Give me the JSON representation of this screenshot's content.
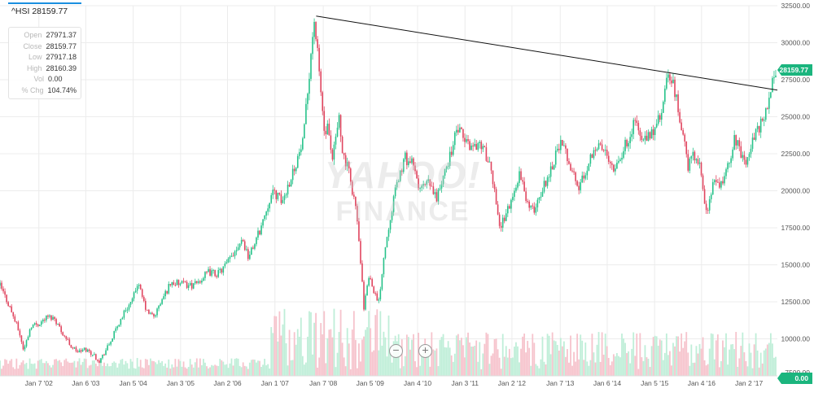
{
  "header": {
    "symbol_title": "^HSI 28159.77"
  },
  "info_panel": {
    "rows": [
      {
        "label": "Open",
        "value": "27971.37"
      },
      {
        "label": "Close",
        "value": "28159.77"
      },
      {
        "label": "Low",
        "value": "27917.18"
      },
      {
        "label": "High",
        "value": "28160.39"
      },
      {
        "label": "Vol",
        "value": "0.00"
      },
      {
        "label": "% Chg",
        "value": "104.74%"
      }
    ]
  },
  "watermark": {
    "line1": "YAHOO!",
    "line2": "FINANCE"
  },
  "controls": {
    "zoom_out_label": "−",
    "zoom_in_label": "+"
  },
  "colors": {
    "up": "#27c28a",
    "down": "#e0455f",
    "volume_up": "#bfeed8",
    "volume_down": "#f6c3cc",
    "price_badge": "#1bb57e",
    "trendline": "#111111",
    "accent": "#1a8fe0"
  },
  "chart_data": {
    "type": "candlestick",
    "symbol": "^HSI",
    "x_tick_labels": [
      "Jan 7 '02",
      "Jan 6 '03",
      "Jan 5 '04",
      "Jan 3 '05",
      "Jan 2 '06",
      "Jan 1 '07",
      "Jan 7 '08",
      "Jan 5 '09",
      "Jan 4 '10",
      "Jan 3 '11",
      "Jan 2 '12",
      "Jan 7 '13",
      "Jan 6 '14",
      "Jan 5 '15",
      "Jan 4 '16",
      "Jan 2 '17"
    ],
    "x_tick_years": [
      2002.02,
      2003.01,
      2004.01,
      2005.01,
      2006.0,
      2007.0,
      2008.02,
      2009.01,
      2010.01,
      2011.01,
      2012.0,
      2013.02,
      2014.01,
      2015.01,
      2016.0,
      2017.0
    ],
    "y_tick_labels": [
      "7500.00",
      "10000.00",
      "12500.00",
      "15000.00",
      "17500.00",
      "20000.00",
      "22500.00",
      "25000.00",
      "27500.00",
      "30000.00",
      "32500.00"
    ],
    "y_ticks": [
      7500,
      10000,
      12500,
      15000,
      17500,
      20000,
      22500,
      25000,
      27500,
      30000,
      32500
    ],
    "ylim": [
      7500,
      32500
    ],
    "xlim": [
      2001.2,
      2017.6
    ],
    "price_path": [
      [
        2001.2,
        13600
      ],
      [
        2001.4,
        12200
      ],
      [
        2001.6,
        10500
      ],
      [
        2001.7,
        9200
      ],
      [
        2001.85,
        10900
      ],
      [
        2002.0,
        11000
      ],
      [
        2002.2,
        11500
      ],
      [
        2002.35,
        11400
      ],
      [
        2002.5,
        10500
      ],
      [
        2002.7,
        9500
      ],
      [
        2002.85,
        9100
      ],
      [
        2003.0,
        9300
      ],
      [
        2003.15,
        9000
      ],
      [
        2003.3,
        8500
      ],
      [
        2003.5,
        9600
      ],
      [
        2003.7,
        11000
      ],
      [
        2003.85,
        12000
      ],
      [
        2004.0,
        12600
      ],
      [
        2004.1,
        13800
      ],
      [
        2004.3,
        11800
      ],
      [
        2004.45,
        11500
      ],
      [
        2004.6,
        12500
      ],
      [
        2004.8,
        13800
      ],
      [
        2005.0,
        13700
      ],
      [
        2005.3,
        13600
      ],
      [
        2005.6,
        14500
      ],
      [
        2005.8,
        14400
      ],
      [
        2006.0,
        15100
      ],
      [
        2006.3,
        16800
      ],
      [
        2006.45,
        15500
      ],
      [
        2006.7,
        17500
      ],
      [
        2006.9,
        19600
      ],
      [
        2007.0,
        19900
      ],
      [
        2007.15,
        19200
      ],
      [
        2007.3,
        20600
      ],
      [
        2007.5,
        22400
      ],
      [
        2007.6,
        23300
      ],
      [
        2007.75,
        29000
      ],
      [
        2007.83,
        31600
      ],
      [
        2007.95,
        27400
      ],
      [
        2008.05,
        23600
      ],
      [
        2008.12,
        24300
      ],
      [
        2008.2,
        21700
      ],
      [
        2008.35,
        25000
      ],
      [
        2008.45,
        22200
      ],
      [
        2008.55,
        21400
      ],
      [
        2008.7,
        19000
      ],
      [
        2008.8,
        15600
      ],
      [
        2008.88,
        11800
      ],
      [
        2008.97,
        14400
      ],
      [
        2009.1,
        13200
      ],
      [
        2009.18,
        12200
      ],
      [
        2009.3,
        15700
      ],
      [
        2009.45,
        18600
      ],
      [
        2009.6,
        20800
      ],
      [
        2009.75,
        22200
      ],
      [
        2009.9,
        21800
      ],
      [
        2010.05,
        20100
      ],
      [
        2010.25,
        20500
      ],
      [
        2010.4,
        19500
      ],
      [
        2010.55,
        20800
      ],
      [
        2010.7,
        22500
      ],
      [
        2010.85,
        24200
      ],
      [
        2011.0,
        23400
      ],
      [
        2011.15,
        23000
      ],
      [
        2011.35,
        23200
      ],
      [
        2011.5,
        22000
      ],
      [
        2011.65,
        19800
      ],
      [
        2011.75,
        17400
      ],
      [
        2011.88,
        18600
      ],
      [
        2012.0,
        19300
      ],
      [
        2012.15,
        21200
      ],
      [
        2012.35,
        19000
      ],
      [
        2012.45,
        18600
      ],
      [
        2012.6,
        19800
      ],
      [
        2012.8,
        21300
      ],
      [
        2013.0,
        23200
      ],
      [
        2013.15,
        22500
      ],
      [
        2013.4,
        20100
      ],
      [
        2013.55,
        21300
      ],
      [
        2013.75,
        23100
      ],
      [
        2014.0,
        22600
      ],
      [
        2014.15,
        21600
      ],
      [
        2014.35,
        22700
      ],
      [
        2014.6,
        24800
      ],
      [
        2014.75,
        23300
      ],
      [
        2014.9,
        23600
      ],
      [
        2015.05,
        24400
      ],
      [
        2015.2,
        25800
      ],
      [
        2015.28,
        27900
      ],
      [
        2015.4,
        27200
      ],
      [
        2015.55,
        24800
      ],
      [
        2015.65,
        23000
      ],
      [
        2015.72,
        21300
      ],
      [
        2015.8,
        22800
      ],
      [
        2015.95,
        21800
      ],
      [
        2016.05,
        19500
      ],
      [
        2016.12,
        18600
      ],
      [
        2016.25,
        20600
      ],
      [
        2016.45,
        20300
      ],
      [
        2016.6,
        22300
      ],
      [
        2016.7,
        23500
      ],
      [
        2016.8,
        22800
      ],
      [
        2016.95,
        22000
      ],
      [
        2017.05,
        23200
      ],
      [
        2017.2,
        24200
      ],
      [
        2017.35,
        25200
      ],
      [
        2017.5,
        27300
      ],
      [
        2017.58,
        28159.77
      ]
    ],
    "trendline": [
      [
        2007.87,
        31800
      ],
      [
        2017.6,
        26800
      ]
    ],
    "last_price": "28159.77",
    "last_volume": "0.00",
    "volume_overlay": true
  }
}
